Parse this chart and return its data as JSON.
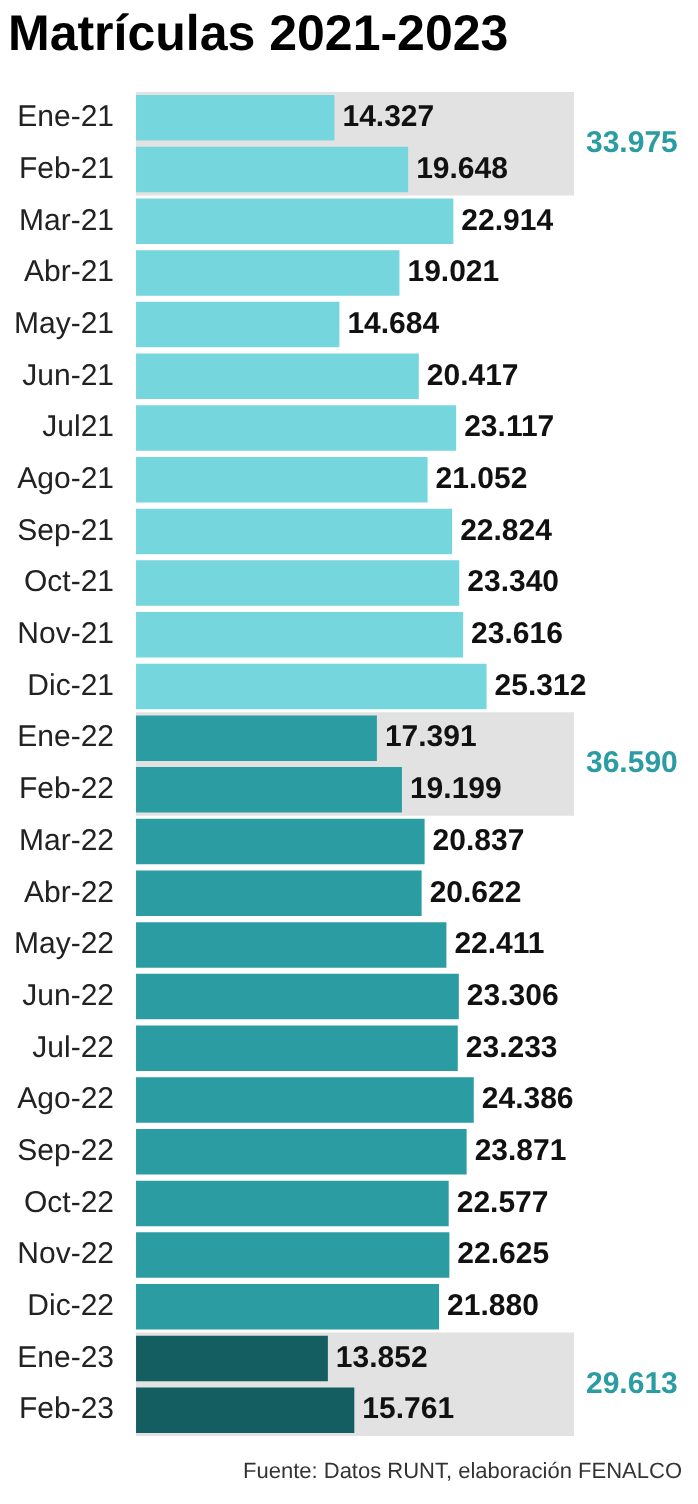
{
  "chart_data": {
    "type": "bar",
    "orientation": "horizontal",
    "title": "Matrículas 2021-2023",
    "categories": [
      "Ene-21",
      "Feb-21",
      "Mar-21",
      "Abr-21",
      "May-21",
      "Jun-21",
      "Jul21",
      "Ago-21",
      "Sep-21",
      "Oct-21",
      "Nov-21",
      "Dic-21",
      "Ene-22",
      "Feb-22",
      "Mar-22",
      "Abr-22",
      "May-22",
      "Jun-22",
      "Jul-22",
      "Ago-22",
      "Sep-22",
      "Oct-22",
      "Nov-22",
      "Dic-22",
      "Ene-23",
      "Feb-23"
    ],
    "values": [
      14327,
      19648,
      22914,
      19021,
      14684,
      20417,
      23117,
      21052,
      22824,
      23340,
      23616,
      25312,
      17391,
      19199,
      20837,
      20622,
      22411,
      23306,
      23233,
      24386,
      23871,
      22577,
      22625,
      21880,
      13852,
      15761
    ],
    "value_labels": [
      "14.327",
      "19.648",
      "22.914",
      "19.021",
      "14.684",
      "20.417",
      "23.117",
      "21.052",
      "22.824",
      "23.340",
      "23.616",
      "25.312",
      "17.391",
      "19.199",
      "20.837",
      "20.622",
      "22.411",
      "23.306",
      "23.233",
      "24.386",
      "23.871",
      "22.577",
      "22.625",
      "21.880",
      "13.852",
      "15.761"
    ],
    "colors": [
      "#76d6de",
      "#76d6de",
      "#76d6de",
      "#76d6de",
      "#76d6de",
      "#76d6de",
      "#76d6de",
      "#76d6de",
      "#76d6de",
      "#76d6de",
      "#76d6de",
      "#76d6de",
      "#2a9ca2",
      "#2a9ca2",
      "#2a9ca2",
      "#2a9ca2",
      "#2a9ca2",
      "#2a9ca2",
      "#2a9ca2",
      "#2a9ca2",
      "#2a9ca2",
      "#2a9ca2",
      "#2a9ca2",
      "#2a9ca2",
      "#145e62",
      "#145e62"
    ],
    "tick_labels": "y",
    "legend": false,
    "bands": [
      {
        "axis": "y",
        "from": "Ene-21",
        "to": "Feb-21",
        "label": "33.975",
        "color": "#e2e2e2"
      },
      {
        "axis": "y",
        "from": "Ene-22",
        "to": "Feb-22",
        "label": "36.590",
        "color": "#e2e2e2"
      },
      {
        "axis": "y",
        "from": "Ene-23",
        "to": "Feb-23",
        "label": "29.613",
        "color": "#e2e2e2"
      }
    ],
    "annotations": [
      "Fuente: Datos RUNT, elaboración FENALCO"
    ]
  }
}
